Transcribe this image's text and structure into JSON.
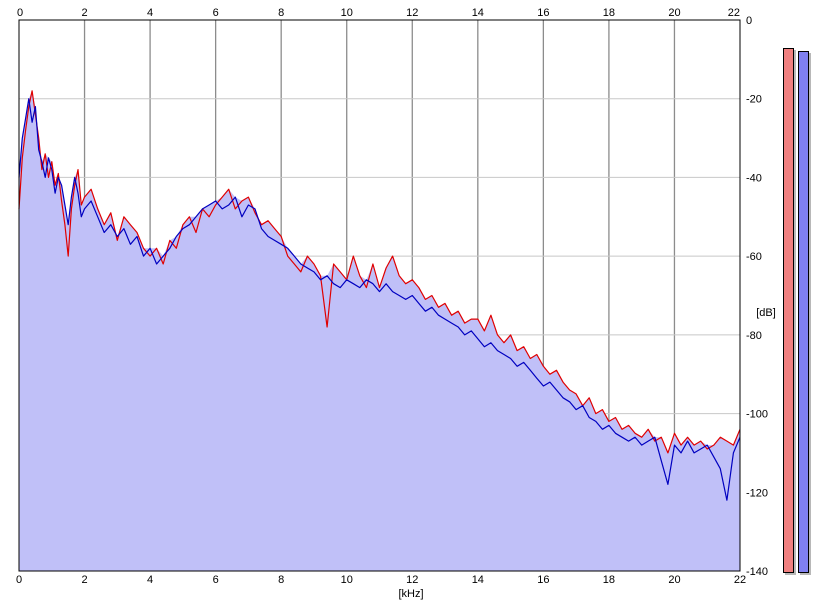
{
  "chart_data": {
    "type": "area",
    "title": "",
    "xlabel": "[kHz]",
    "ylabel": "[dB]",
    "xlim": [
      0,
      22
    ],
    "ylim": [
      -140,
      0
    ],
    "x_ticks": [
      "0",
      "2",
      "4",
      "6",
      "8",
      "10",
      "12",
      "14",
      "16",
      "18",
      "20",
      "22"
    ],
    "y_ticks": [
      "0",
      "-20",
      "-40",
      "-60",
      "-80",
      "-100",
      "-120",
      "-140"
    ],
    "grid": true,
    "fill_color": "#c0c0f8",
    "series": [
      {
        "color": "#e00000",
        "x": [
          0,
          0.1,
          0.2,
          0.3,
          0.4,
          0.5,
          0.6,
          0.7,
          0.8,
          0.9,
          1.0,
          1.1,
          1.2,
          1.3,
          1.4,
          1.5,
          1.6,
          1.7,
          1.8,
          1.9,
          2.0,
          2.2,
          2.4,
          2.6,
          2.8,
          3.0,
          3.2,
          3.4,
          3.6,
          3.8,
          4.0,
          4.2,
          4.4,
          4.6,
          4.8,
          5.0,
          5.2,
          5.4,
          5.6,
          5.8,
          6.0,
          6.2,
          6.4,
          6.6,
          6.8,
          7.0,
          7.2,
          7.4,
          7.6,
          7.8,
          8.0,
          8.2,
          8.4,
          8.6,
          8.8,
          9.0,
          9.2,
          9.4,
          9.6,
          9.8,
          10.0,
          10.2,
          10.4,
          10.6,
          10.8,
          11.0,
          11.2,
          11.4,
          11.6,
          11.8,
          12.0,
          12.2,
          12.4,
          12.6,
          12.8,
          13.0,
          13.2,
          13.4,
          13.6,
          13.8,
          14.0,
          14.2,
          14.4,
          14.6,
          14.8,
          15.0,
          15.2,
          15.4,
          15.6,
          15.8,
          16.0,
          16.2,
          16.4,
          16.6,
          16.8,
          17.0,
          17.2,
          17.4,
          17.6,
          17.8,
          18.0,
          18.2,
          18.4,
          18.6,
          18.8,
          19.0,
          19.2,
          19.4,
          19.6,
          19.8,
          20.0,
          20.2,
          20.4,
          20.6,
          20.8,
          21.0,
          21.2,
          21.4,
          21.6,
          21.8,
          22.0
        ],
        "y": [
          -48,
          -35,
          -28,
          -22,
          -18,
          -24,
          -30,
          -38,
          -34,
          -40,
          -36,
          -42,
          -39,
          -46,
          -52,
          -60,
          -48,
          -42,
          -38,
          -47,
          -45,
          -43,
          -48,
          -52,
          -49,
          -56,
          -50,
          -52,
          -54,
          -58,
          -60,
          -58,
          -62,
          -56,
          -58,
          -52,
          -50,
          -54,
          -48,
          -50,
          -47,
          -45,
          -43,
          -48,
          -46,
          -45,
          -49,
          -52,
          -51,
          -53,
          -55,
          -60,
          -62,
          -64,
          -60,
          -62,
          -65,
          -78,
          -62,
          -64,
          -66,
          -60,
          -65,
          -68,
          -62,
          -68,
          -63,
          -60,
          -65,
          -67,
          -66,
          -68,
          -71,
          -70,
          -73,
          -72,
          -75,
          -74,
          -77,
          -76,
          -76,
          -79,
          -75,
          -80,
          -82,
          -80,
          -84,
          -83,
          -86,
          -85,
          -88,
          -90,
          -89,
          -92,
          -94,
          -95,
          -98,
          -96,
          -100,
          -99,
          -102,
          -101,
          -104,
          -103,
          -105,
          -106,
          -104,
          -107,
          -106,
          -110,
          -105,
          -108,
          -106,
          -108,
          -107,
          -109,
          -108,
          -106,
          -107,
          -108,
          -104
        ]
      },
      {
        "color": "#0000c0",
        "x": [
          0,
          0.1,
          0.2,
          0.3,
          0.4,
          0.5,
          0.6,
          0.7,
          0.8,
          0.9,
          1.0,
          1.1,
          1.2,
          1.3,
          1.4,
          1.5,
          1.6,
          1.7,
          1.8,
          1.9,
          2.0,
          2.2,
          2.4,
          2.6,
          2.8,
          3.0,
          3.2,
          3.4,
          3.6,
          3.8,
          4.0,
          4.2,
          4.4,
          4.6,
          4.8,
          5.0,
          5.2,
          5.4,
          5.6,
          5.8,
          6.0,
          6.2,
          6.4,
          6.6,
          6.8,
          7.0,
          7.2,
          7.4,
          7.6,
          7.8,
          8.0,
          8.2,
          8.4,
          8.6,
          8.8,
          9.0,
          9.2,
          9.4,
          9.6,
          9.8,
          10.0,
          10.2,
          10.4,
          10.6,
          10.8,
          11.0,
          11.2,
          11.4,
          11.6,
          11.8,
          12.0,
          12.2,
          12.4,
          12.6,
          12.8,
          13.0,
          13.2,
          13.4,
          13.6,
          13.8,
          14.0,
          14.2,
          14.4,
          14.6,
          14.8,
          15.0,
          15.2,
          15.4,
          15.6,
          15.8,
          16.0,
          16.2,
          16.4,
          16.6,
          16.8,
          17.0,
          17.2,
          17.4,
          17.6,
          17.8,
          18.0,
          18.2,
          18.4,
          18.6,
          18.8,
          19.0,
          19.2,
          19.4,
          19.6,
          19.8,
          20.0,
          20.2,
          20.4,
          20.6,
          20.8,
          21.0,
          21.2,
          21.4,
          21.6,
          21.8,
          22.0
        ],
        "y": [
          -40,
          -30,
          -25,
          -20,
          -26,
          -22,
          -33,
          -36,
          -40,
          -35,
          -38,
          -44,
          -40,
          -42,
          -47,
          -52,
          -45,
          -40,
          -44,
          -50,
          -48,
          -46,
          -50,
          -54,
          -52,
          -55,
          -53,
          -57,
          -55,
          -60,
          -58,
          -62,
          -60,
          -58,
          -55,
          -53,
          -52,
          -50,
          -48,
          -47,
          -46,
          -48,
          -47,
          -45,
          -50,
          -47,
          -48,
          -53,
          -55,
          -56,
          -57,
          -58,
          -60,
          -62,
          -63,
          -64,
          -66,
          -65,
          -67,
          -68,
          -66,
          -67,
          -68,
          -66,
          -67,
          -69,
          -67,
          -69,
          -70,
          -71,
          -70,
          -72,
          -74,
          -73,
          -75,
          -76,
          -77,
          -78,
          -80,
          -79,
          -81,
          -83,
          -82,
          -84,
          -85,
          -86,
          -88,
          -87,
          -89,
          -91,
          -93,
          -92,
          -94,
          -96,
          -97,
          -99,
          -98,
          -101,
          -102,
          -104,
          -103,
          -105,
          -106,
          -107,
          -106,
          -108,
          -107,
          -106,
          -112,
          -118,
          -108,
          -110,
          -107,
          -110,
          -109,
          -108,
          -111,
          -114,
          -122,
          -110,
          -106
        ]
      }
    ],
    "level_meters": [
      {
        "color": "#f08080"
      },
      {
        "color": "#8080f0"
      }
    ]
  }
}
